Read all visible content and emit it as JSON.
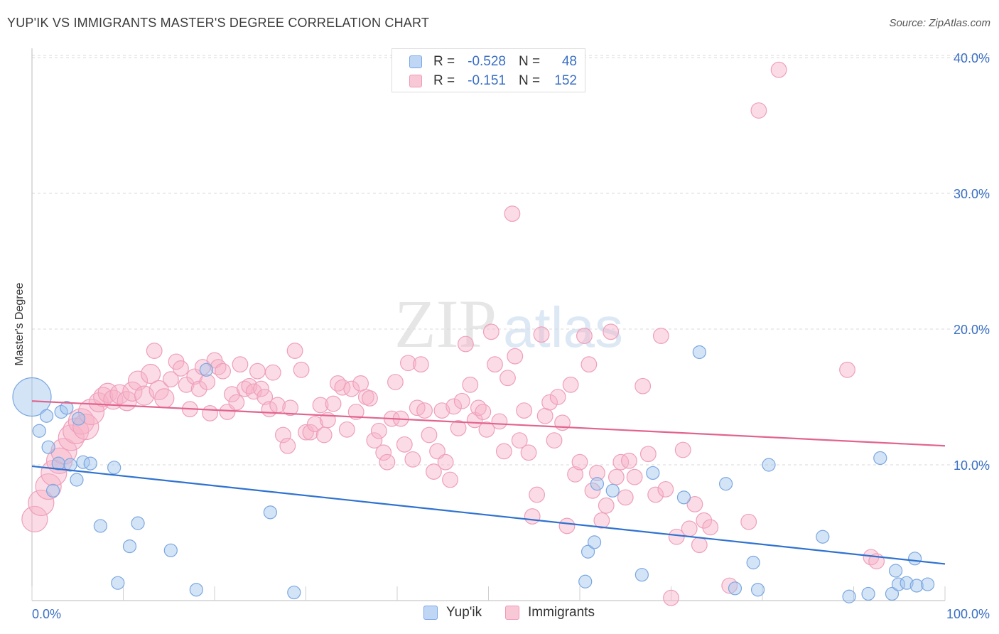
{
  "header": {
    "title": "YUP'IK VS IMMIGRANTS MASTER'S DEGREE CORRELATION CHART",
    "source": "Source: ZipAtlas.com"
  },
  "watermark": {
    "zip": "ZIP",
    "atlas": "atlas"
  },
  "legend": {
    "rows": [
      {
        "r_label": "R =",
        "r_value": "-0.528",
        "n_label": "N =",
        "n_value": "48",
        "color": "#7aa7e8",
        "fill": "#c0d6f5"
      },
      {
        "r_label": "R =",
        "r_value": "-0.151",
        "n_label": "N =",
        "n_value": "152",
        "color": "#ef9ab5",
        "fill": "#f8c8d6"
      }
    ]
  },
  "bottom_legend": {
    "items": [
      "Yup'ik",
      "Immigrants"
    ]
  },
  "colors": {
    "blue_point_fill": "rgba(160,196,238,0.45)",
    "blue_point_stroke": "#7aa7e0",
    "blue_line": "#2f72d0",
    "pink_point_fill": "rgba(246,178,200,0.45)",
    "pink_point_stroke": "#ee9fba",
    "pink_line": "#e2648e",
    "grid": "#d9d9d9",
    "tick_label": "#3a6fc4"
  },
  "chart_data": {
    "type": "scatter",
    "title": "YUP'IK VS IMMIGRANTS MASTER'S DEGREE CORRELATION CHART",
    "xlabel": "",
    "ylabel": "Master's Degree",
    "xlim": [
      0,
      100
    ],
    "ylim": [
      0,
      41
    ],
    "x_tick_labels": [
      "0.0%",
      "100.0%"
    ],
    "y_ticks": [
      10,
      20,
      30,
      40
    ],
    "y_tick_labels": [
      "10.0%",
      "20.0%",
      "30.0%",
      "40.0%"
    ],
    "grid": "horizontal dashed",
    "legend_placement": "top-center",
    "series": [
      {
        "name": "Yup'ik",
        "r": -0.528,
        "n": 48,
        "trend": [
          [
            0,
            9.9
          ],
          [
            100,
            2.7
          ]
        ],
        "points": [
          [
            0,
            15,
            3
          ],
          [
            0.8,
            12.5,
            1
          ],
          [
            1.6,
            13.6,
            1
          ],
          [
            1.8,
            11.3,
            1
          ],
          [
            2.3,
            8.1,
            1
          ],
          [
            2.9,
            10.1,
            1
          ],
          [
            3.2,
            13.9,
            1
          ],
          [
            3.8,
            14.2,
            1
          ],
          [
            4.2,
            10.0,
            1
          ],
          [
            4.9,
            8.9,
            1
          ],
          [
            5.1,
            13.4,
            1
          ],
          [
            5.6,
            10.2,
            1
          ],
          [
            6.4,
            10.1,
            1
          ],
          [
            7.5,
            5.5,
            1
          ],
          [
            9.0,
            9.8,
            1
          ],
          [
            9.4,
            1.3,
            1
          ],
          [
            10.7,
            4.0,
            1
          ],
          [
            11.6,
            5.7,
            1
          ],
          [
            15.2,
            3.7,
            1
          ],
          [
            18.0,
            0.8,
            1
          ],
          [
            19.1,
            17.0,
            1
          ],
          [
            26.1,
            6.5,
            1
          ],
          [
            28.7,
            0.6,
            1
          ],
          [
            60.6,
            1.4,
            1
          ],
          [
            60.9,
            3.6,
            1
          ],
          [
            61.9,
            8.6,
            1
          ],
          [
            61.6,
            4.3,
            1
          ],
          [
            63.6,
            8.1,
            1
          ],
          [
            66.8,
            1.9,
            1
          ],
          [
            68.0,
            9.4,
            1
          ],
          [
            71.4,
            7.6,
            1
          ],
          [
            73.1,
            18.3,
            1
          ],
          [
            76.0,
            8.6,
            1
          ],
          [
            77.0,
            0.9,
            1
          ],
          [
            79.0,
            2.8,
            1
          ],
          [
            79.5,
            0.8,
            1
          ],
          [
            80.7,
            10.0,
            1
          ],
          [
            86.6,
            4.7,
            1
          ],
          [
            89.5,
            0.3,
            1
          ],
          [
            91.6,
            0.5,
            1
          ],
          [
            92.9,
            10.5,
            1
          ],
          [
            94.2,
            0.5,
            1
          ],
          [
            94.6,
            2.2,
            1
          ],
          [
            94.9,
            1.2,
            1
          ],
          [
            95.8,
            1.3,
            1
          ],
          [
            96.7,
            3.1,
            1
          ],
          [
            96.9,
            1.1,
            1
          ],
          [
            98.1,
            1.2,
            1
          ]
        ]
      },
      {
        "name": "Immigrants",
        "r": -0.151,
        "n": 152,
        "trend": [
          [
            0,
            14.7
          ],
          [
            100,
            11.4
          ]
        ],
        "points": [
          [
            0.3,
            6.0,
            2
          ],
          [
            1.0,
            7.2,
            2
          ],
          [
            1.8,
            8.4,
            2
          ],
          [
            2.4,
            9.4,
            2
          ],
          [
            3.0,
            10.3,
            2
          ],
          [
            3.5,
            11.0,
            2
          ],
          [
            4.3,
            12.0,
            2
          ],
          [
            4.8,
            12.5,
            2
          ],
          [
            5.4,
            13.2,
            2
          ],
          [
            5.9,
            12.8,
            2
          ],
          [
            6.5,
            13.9,
            2
          ],
          [
            7.3,
            14.6,
            1.5
          ],
          [
            7.8,
            15.0,
            1.5
          ],
          [
            8.3,
            15.3,
            1.5
          ],
          [
            8.9,
            14.8,
            1.5
          ],
          [
            9.6,
            15.2,
            1.5
          ],
          [
            10.4,
            14.7,
            1.5
          ],
          [
            11.0,
            15.4,
            1.5
          ],
          [
            11.6,
            16.2,
            1.5
          ],
          [
            12.3,
            15.1,
            1.5
          ],
          [
            13.0,
            16.7,
            1.5
          ],
          [
            13.4,
            18.4,
            1.2
          ],
          [
            13.9,
            15.5,
            1.5
          ],
          [
            14.5,
            14.9,
            1.5
          ],
          [
            15.2,
            16.3,
            1.2
          ],
          [
            15.8,
            17.6,
            1.2
          ],
          [
            16.3,
            17.1,
            1.2
          ],
          [
            16.9,
            15.9,
            1.2
          ],
          [
            17.3,
            14.1,
            1.2
          ],
          [
            17.8,
            16.5,
            1.2
          ],
          [
            18.3,
            15.6,
            1.2
          ],
          [
            18.7,
            17.2,
            1.2
          ],
          [
            19.2,
            16.1,
            1.2
          ],
          [
            19.5,
            13.8,
            1.2
          ],
          [
            20.0,
            17.7,
            1.2
          ],
          [
            20.4,
            17.2,
            1.2
          ],
          [
            20.9,
            16.9,
            1.2
          ],
          [
            21.4,
            13.9,
            1.2
          ],
          [
            21.9,
            15.2,
            1.2
          ],
          [
            22.4,
            14.6,
            1.2
          ],
          [
            22.8,
            17.4,
            1.2
          ],
          [
            23.3,
            15.6,
            1.2
          ],
          [
            23.8,
            15.8,
            1.2
          ],
          [
            24.3,
            15.4,
            1.2
          ],
          [
            24.7,
            16.9,
            1.2
          ],
          [
            25.1,
            15.6,
            1.2
          ],
          [
            25.5,
            15.0,
            1.2
          ],
          [
            26.0,
            14.1,
            1.2
          ],
          [
            26.4,
            16.8,
            1.2
          ],
          [
            26.9,
            14.4,
            1.2
          ],
          [
            27.5,
            12.2,
            1.2
          ],
          [
            28.0,
            11.4,
            1.2
          ],
          [
            28.3,
            14.2,
            1.2
          ],
          [
            28.8,
            18.4,
            1.2
          ],
          [
            29.5,
            17.0,
            1.2
          ],
          [
            30.0,
            12.4,
            1.2
          ],
          [
            30.5,
            12.4,
            1.2
          ],
          [
            31.0,
            13.0,
            1.2
          ],
          [
            31.6,
            14.4,
            1.2
          ],
          [
            32.0,
            12.2,
            1.2
          ],
          [
            32.4,
            13.3,
            1.2
          ],
          [
            33.0,
            14.5,
            1.2
          ],
          [
            33.5,
            16.0,
            1.2
          ],
          [
            34.0,
            15.7,
            1.2
          ],
          [
            34.5,
            12.6,
            1.2
          ],
          [
            35.0,
            15.6,
            1.2
          ],
          [
            35.5,
            13.9,
            1.2
          ],
          [
            36.0,
            16.0,
            1.2
          ],
          [
            36.6,
            15.0,
            1.2
          ],
          [
            37.0,
            14.9,
            1.2
          ],
          [
            37.5,
            11.8,
            1.2
          ],
          [
            38.0,
            12.5,
            1.2
          ],
          [
            38.5,
            10.9,
            1.2
          ],
          [
            38.9,
            10.2,
            1.2
          ],
          [
            39.4,
            13.4,
            1.2
          ],
          [
            39.8,
            16.1,
            1.2
          ],
          [
            40.4,
            13.4,
            1.2
          ],
          [
            40.8,
            11.5,
            1.2
          ],
          [
            41.2,
            17.5,
            1.2
          ],
          [
            41.7,
            10.4,
            1.2
          ],
          [
            42.2,
            14.2,
            1.2
          ],
          [
            42.6,
            17.4,
            1.2
          ],
          [
            43.0,
            14.0,
            1.2
          ],
          [
            43.5,
            12.2,
            1.2
          ],
          [
            44.0,
            9.5,
            1.2
          ],
          [
            44.4,
            11.0,
            1.2
          ],
          [
            44.9,
            14.0,
            1.2
          ],
          [
            45.3,
            10.2,
            1.2
          ],
          [
            45.8,
            8.9,
            1.2
          ],
          [
            46.2,
            14.3,
            1.2
          ],
          [
            46.7,
            12.7,
            1.2
          ],
          [
            47.1,
            14.7,
            1.2
          ],
          [
            47.5,
            18.9,
            1.2
          ],
          [
            48.0,
            15.9,
            1.2
          ],
          [
            48.5,
            13.3,
            1.2
          ],
          [
            48.9,
            14.2,
            1.2
          ],
          [
            49.4,
            13.9,
            1.2
          ],
          [
            49.8,
            12.6,
            1.2
          ],
          [
            50.3,
            19.8,
            1.2
          ],
          [
            50.7,
            17.4,
            1.2
          ],
          [
            51.2,
            13.2,
            1.2
          ],
          [
            51.7,
            11.0,
            1.2
          ],
          [
            52.1,
            16.4,
            1.2
          ],
          [
            52.6,
            28.5,
            1.2
          ],
          [
            52.9,
            18.0,
            1.2
          ],
          [
            53.4,
            11.8,
            1.2
          ],
          [
            53.9,
            14.0,
            1.2
          ],
          [
            54.4,
            10.9,
            1.2
          ],
          [
            54.8,
            6.2,
            1.2
          ],
          [
            55.3,
            7.8,
            1.2
          ],
          [
            55.8,
            19.6,
            1.2
          ],
          [
            56.2,
            13.6,
            1.2
          ],
          [
            56.7,
            14.6,
            1.2
          ],
          [
            57.2,
            11.8,
            1.2
          ],
          [
            57.6,
            15.0,
            1.2
          ],
          [
            58.1,
            13.1,
            1.2
          ],
          [
            58.6,
            5.5,
            1.2
          ],
          [
            59.0,
            15.9,
            1.2
          ],
          [
            59.5,
            9.3,
            1.2
          ],
          [
            60.0,
            10.2,
            1.2
          ],
          [
            60.5,
            19.5,
            1.2
          ],
          [
            61.0,
            17.4,
            1.2
          ],
          [
            61.4,
            8.1,
            1.2
          ],
          [
            61.9,
            9.4,
            1.2
          ],
          [
            62.4,
            5.9,
            1.2
          ],
          [
            62.9,
            7.0,
            1.2
          ],
          [
            63.4,
            19.8,
            1.2
          ],
          [
            64.0,
            9.1,
            1.2
          ],
          [
            64.5,
            10.2,
            1.2
          ],
          [
            65.0,
            7.6,
            1.2
          ],
          [
            65.4,
            10.3,
            1.2
          ],
          [
            66.0,
            9.1,
            1.2
          ],
          [
            66.9,
            15.8,
            1.2
          ],
          [
            67.5,
            10.8,
            1.2
          ],
          [
            68.3,
            7.8,
            1.2
          ],
          [
            68.9,
            19.5,
            1.2
          ],
          [
            69.4,
            8.2,
            1.2
          ],
          [
            70.0,
            0.2,
            1.2
          ],
          [
            70.6,
            4.7,
            1.2
          ],
          [
            71.3,
            11.1,
            1.2
          ],
          [
            72.0,
            5.3,
            1.2
          ],
          [
            72.6,
            7.1,
            1.2
          ],
          [
            73.1,
            4.1,
            1.2
          ],
          [
            73.6,
            5.9,
            1.2
          ],
          [
            74.3,
            5.4,
            1.2
          ],
          [
            76.4,
            1.1,
            1.2
          ],
          [
            78.5,
            5.8,
            1.2
          ],
          [
            79.6,
            36.1,
            1.2
          ],
          [
            81.8,
            39.1,
            1.2
          ],
          [
            89.3,
            17.0,
            1.2
          ],
          [
            91.9,
            3.2,
            1.2
          ],
          [
            92.5,
            2.9,
            1.2
          ]
        ]
      }
    ]
  }
}
